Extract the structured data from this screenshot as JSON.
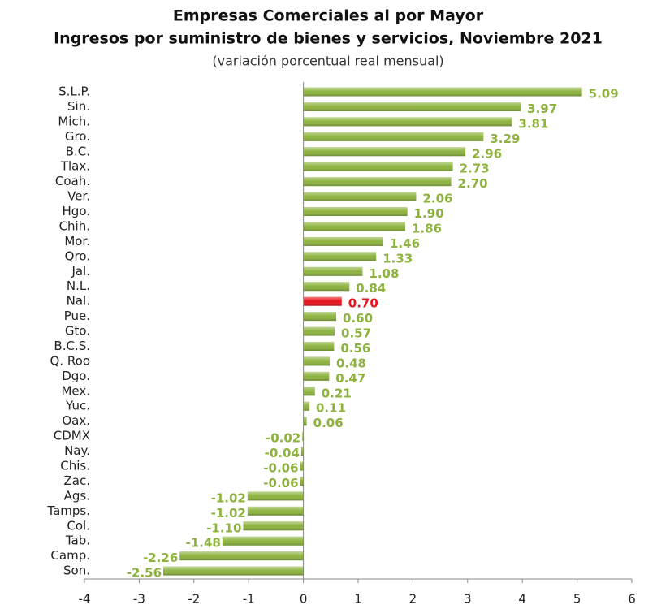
{
  "chart_data": {
    "type": "hbar",
    "title": "Empresas Comerciales al por Mayor",
    "subtitle": "Ingresos por suministro de bienes y servicios, Noviembre 2021",
    "note": "(variación porcentual real mensual)",
    "categories": [
      "S.L.P.",
      "Sin.",
      "Mich.",
      "Gro.",
      "B.C.",
      "Tlax.",
      "Coah.",
      "Ver.",
      "Hgo.",
      "Chih.",
      "Mor.",
      "Qro.",
      "Jal.",
      "N.L.",
      "Nal.",
      "Pue.",
      "Gto.",
      "B.C.S.",
      "Q. Roo",
      "Dgo.",
      "Mex.",
      "Yuc.",
      "Oax.",
      "CDMX",
      "Nay.",
      "Chis.",
      "Zac.",
      "Ags.",
      "Tamps.",
      "Col.",
      "Tab.",
      "Camp.",
      "Son."
    ],
    "values": [
      5.09,
      3.97,
      3.81,
      3.29,
      2.96,
      2.73,
      2.7,
      2.06,
      1.9,
      1.86,
      1.46,
      1.33,
      1.08,
      0.84,
      0.7,
      0.6,
      0.57,
      0.56,
      0.48,
      0.47,
      0.21,
      0.11,
      0.06,
      -0.02,
      -0.04,
      -0.06,
      -0.06,
      -1.02,
      -1.02,
      -1.1,
      -1.48,
      -2.26,
      -2.56
    ],
    "value_labels": [
      "5.09",
      "3.97",
      "3.81",
      "3.29",
      "2.96",
      "2.73",
      "2.70",
      "2.06",
      "1.90",
      "1.86",
      "1.46",
      "1.33",
      "1.08",
      "0.84",
      "0.70",
      "0.60",
      "0.57",
      "0.56",
      "0.48",
      "0.47",
      "0.21",
      "0.11",
      "0.06",
      "-0.02",
      "-0.04",
      "-0.06",
      "-0.06",
      "-1.02",
      "-1.02",
      "-1.10",
      "-1.48",
      "-2.26",
      "-2.56"
    ],
    "colors": [
      "#8db33e",
      "#8db33e",
      "#8db33e",
      "#8db33e",
      "#8db33e",
      "#8db33e",
      "#8db33e",
      "#8db33e",
      "#8db33e",
      "#8db33e",
      "#8db33e",
      "#8db33e",
      "#8db33e",
      "#8db33e",
      "#e8141c",
      "#8db33e",
      "#8db33e",
      "#8db33e",
      "#8db33e",
      "#8db33e",
      "#8db33e",
      "#8db33e",
      "#8db33e",
      "#8db33e",
      "#8db33e",
      "#8db33e",
      "#8db33e",
      "#8db33e",
      "#8db33e",
      "#8db33e",
      "#8db33e",
      "#8db33e",
      "#8db33e"
    ],
    "xlim": [
      -4,
      6
    ],
    "xticks": [
      -4,
      -3,
      -2,
      -1,
      0,
      1,
      2,
      3,
      4,
      5,
      6
    ]
  }
}
